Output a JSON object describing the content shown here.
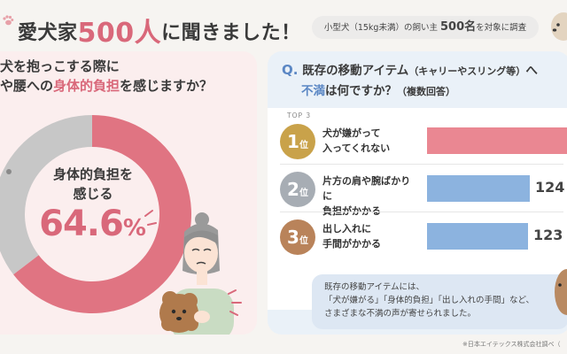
{
  "header": {
    "title_prefix": "愛犬家",
    "title_number": "500人",
    "title_suffix": "に聞きました！",
    "survey_pre": "小型犬（15kg未満）の飼い主 ",
    "survey_num": "500名",
    "survey_post": "を対象に調査"
  },
  "left": {
    "question_line1": "犬を抱っこする際に",
    "question_line2_pre": "や腰への",
    "question_line2_accent": "身体的負担",
    "question_line2_post": "を感じますか？",
    "donut_label_line1": "身体的負担を",
    "donut_label_line2": "感じる",
    "donut_value": "64.6",
    "donut_unit": "%"
  },
  "right": {
    "q_mark": "Q.",
    "question_line1": "既存の移動アイテム",
    "question_line1_small": "（キャリーやスリング等）",
    "question_line1_tail": "へ",
    "question_accent": "不満",
    "question_line2": "は何ですか？",
    "question_line2_small": "（複数回答）",
    "top_label": "TOP 3",
    "rank_suffix": "位",
    "note_line1": "既存の移動アイテムには、",
    "note_line2": "「犬が嫌がる」「身体的負担」「出し入れの手間」など、",
    "note_line3": "さまざまな不満の声が寄せられました。"
  },
  "footnote": "※日本エイテックス株式会社調べ（",
  "colors": {
    "pink_accent": "#d9687a",
    "donut_pink": "#e07482",
    "donut_gray": "#c7c7c7",
    "blue_accent": "#5b87c4",
    "bar_pink": "#ea8792",
    "bar_blue": "#8cb3df",
    "gold": "#c9a24a",
    "silver": "#a7adb4",
    "bronze": "#b9835a"
  },
  "chart_data": [
    {
      "type": "pie",
      "values": [
        64.6,
        35.4
      ],
      "value_labels": [
        "64.6%",
        ""
      ]
    },
    {
      "type": "bar",
      "orientation": "horizontal",
      "categories": [
        "犬が嫌がって入ってくれない",
        "片方の肩や腕ばかりに負担がかかる",
        "出し入れに手間がかかる"
      ],
      "category_lines": [
        [
          "犬が嫌がって",
          "入ってくれない"
        ],
        [
          "片方の肩や腕ばかりに",
          "負担がかかる"
        ],
        [
          "出し入れに",
          "手間がかかる"
        ]
      ],
      "ranks": [
        "1",
        "2",
        "3"
      ],
      "value_labels": [
        "",
        "124",
        "123"
      ],
      "bar_fraction": [
        1.0,
        0.68,
        0.67
      ]
    }
  ]
}
